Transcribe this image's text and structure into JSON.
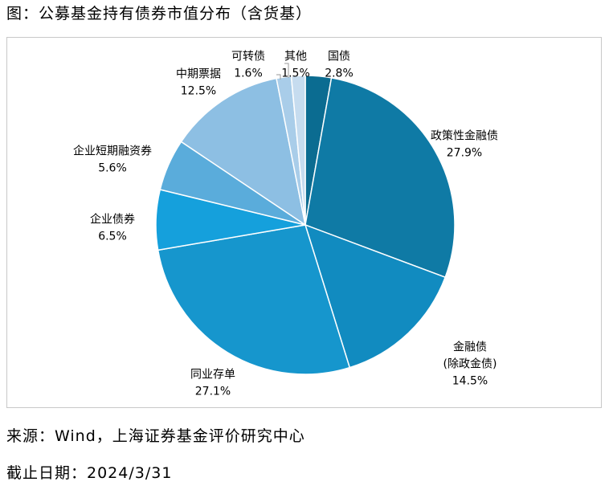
{
  "figure": {
    "title": "图：公募基金持有债券市值分布（含货基）",
    "source": "来源：Wind，上海证券基金评价研究中心",
    "as_of": "截止日期：2024/3/31"
  },
  "chart_data": {
    "type": "pie",
    "unit": "%",
    "start": "top",
    "direction": "clockwise",
    "slices": [
      {
        "name": "国债",
        "value": 2.8,
        "value_label": "2.8%",
        "color": "#0b6c91"
      },
      {
        "name": "政策性金融债",
        "value": 27.9,
        "value_label": "27.9%",
        "color": "#0f7aa5"
      },
      {
        "name": "金融债",
        "name_line2": "(除政金债)",
        "value": 14.5,
        "value_label": "14.5%",
        "color": "#118bc0"
      },
      {
        "name": "同业存单",
        "value": 27.1,
        "value_label": "27.1%",
        "color": "#1696cd"
      },
      {
        "name": "企业债券",
        "value": 6.5,
        "value_label": "6.5%",
        "color": "#15a0dc"
      },
      {
        "name": "企业短期融资券",
        "value": 5.6,
        "value_label": "5.6%",
        "color": "#5aacdb"
      },
      {
        "name": "中期票据",
        "value": 12.5,
        "value_label": "12.5%",
        "color": "#8dbfe3"
      },
      {
        "name": "可转债",
        "value": 1.6,
        "value_label": "1.6%",
        "color": "#a9cde9"
      },
      {
        "name": "其他",
        "value": 1.5,
        "value_label": "1.5%",
        "color": "#c6dcef"
      }
    ]
  }
}
